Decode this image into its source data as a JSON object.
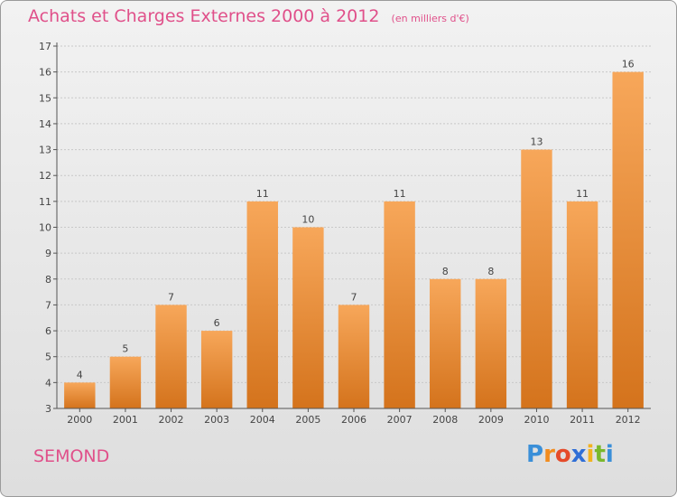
{
  "header": {
    "title": "Achats et Charges Externes 2000 à 2012",
    "unit": "(en milliers d'€)"
  },
  "footer": {
    "commune": "SEMOND",
    "logo_text": "Proxiti",
    "logo_letters": [
      {
        "ch": "P",
        "color": "#3a8fd8"
      },
      {
        "ch": "r",
        "color": "#f28c1e"
      },
      {
        "ch": "o",
        "color": "#e54b2a"
      },
      {
        "ch": "x",
        "color": "#2f6ed6"
      },
      {
        "ch": "i",
        "color": "#f2b21e"
      },
      {
        "ch": "t",
        "color": "#7ab82c"
      },
      {
        "ch": "i",
        "color": "#3a8fd8"
      }
    ]
  },
  "colors": {
    "title": "#e0508a",
    "bar_top": "#f7a75a",
    "bar_bottom": "#d4731c",
    "axis": "#555555",
    "grid": "#c8c8c8"
  },
  "chart_data": {
    "type": "bar",
    "title": "Achats et Charges Externes 2000 à 2012",
    "subtitle": "(en milliers d'€)",
    "categories": [
      "2000",
      "2001",
      "2002",
      "2003",
      "2004",
      "2005",
      "2006",
      "2007",
      "2008",
      "2009",
      "2010",
      "2011",
      "2012"
    ],
    "values": [
      4,
      5,
      7,
      6,
      11,
      10,
      7,
      11,
      8,
      8,
      13,
      11,
      16
    ],
    "ylim": [
      3,
      17
    ],
    "yticks": [
      3,
      4,
      5,
      6,
      7,
      8,
      9,
      10,
      11,
      12,
      13,
      14,
      15,
      16,
      17
    ],
    "grid": true,
    "legend": "none"
  }
}
